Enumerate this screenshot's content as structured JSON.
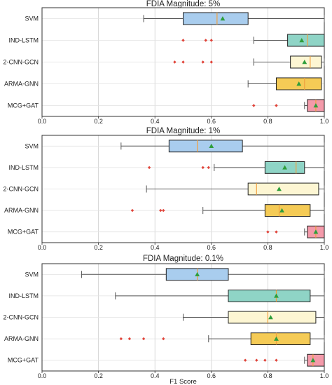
{
  "figure": {
    "xlabel": "F1 Score"
  },
  "colors": {
    "SVM": "#a9cdee",
    "IND-LSTM": "#8fd4c6",
    "2-CNN-GCN": "#fdf6d3",
    "ARMA-GNN": "#f5cb56",
    "MCG+GAT": "#f49aaa",
    "median": "#f0a040",
    "mean_marker": "#2e9e3b",
    "outlier": "#e0443a"
  },
  "chart_data": [
    {
      "type": "box",
      "title": "FDIA Magnitude: 5%",
      "xlabel": "",
      "xlim": [
        0.0,
        1.0
      ],
      "xticks": [
        "0.0",
        "0.2",
        "0.4",
        "0.6",
        "0.8",
        "1.0"
      ],
      "grid": true,
      "series": [
        {
          "name": "SVM",
          "whisker_low": 0.36,
          "q1": 0.5,
          "median": 0.62,
          "q3": 0.73,
          "whisker_high": 1.0,
          "mean": 0.64,
          "outliers": []
        },
        {
          "name": "IND-LSTM",
          "whisker_low": 0.75,
          "q1": 0.87,
          "median": 0.94,
          "q3": 1.0,
          "whisker_high": 1.0,
          "mean": 0.92,
          "outliers": [
            0.5,
            0.58,
            0.6
          ]
        },
        {
          "name": "2-CNN-GCN",
          "whisker_low": 0.75,
          "q1": 0.88,
          "median": 0.95,
          "q3": 0.99,
          "whisker_high": 1.0,
          "mean": 0.93,
          "outliers": [
            0.47,
            0.5,
            0.57,
            0.6
          ]
        },
        {
          "name": "ARMA-GNN",
          "whisker_low": 0.73,
          "q1": 0.83,
          "median": 0.93,
          "q3": 0.99,
          "whisker_high": 0.99,
          "mean": 0.91,
          "outliers": []
        },
        {
          "name": "MCG+GAT",
          "whisker_low": 0.93,
          "q1": 0.94,
          "median": 0.97,
          "q3": 1.0,
          "whisker_high": 1.0,
          "mean": 0.97,
          "outliers": [
            0.75,
            0.83
          ]
        }
      ]
    },
    {
      "type": "box",
      "title": "FDIA Magnitude: 1%",
      "xlabel": "",
      "xlim": [
        0.0,
        1.0
      ],
      "xticks": [
        "0.0",
        "0.2",
        "0.4",
        "0.6",
        "0.8",
        "1.0"
      ],
      "grid": true,
      "series": [
        {
          "name": "SVM",
          "whisker_low": 0.28,
          "q1": 0.45,
          "median": 0.55,
          "q3": 0.71,
          "whisker_high": 1.0,
          "mean": 0.6,
          "outliers": []
        },
        {
          "name": "IND-LSTM",
          "whisker_low": 0.61,
          "q1": 0.79,
          "median": 0.9,
          "q3": 0.93,
          "whisker_high": 1.0,
          "mean": 0.86,
          "outliers": [
            0.38,
            0.57,
            0.59
          ]
        },
        {
          "name": "2-CNN-GCN",
          "whisker_low": 0.37,
          "q1": 0.73,
          "median": 0.76,
          "q3": 0.98,
          "whisker_high": 1.0,
          "mean": 0.84,
          "outliers": []
        },
        {
          "name": "ARMA-GNN",
          "whisker_low": 0.57,
          "q1": 0.79,
          "median": 0.84,
          "q3": 0.95,
          "whisker_high": 1.0,
          "mean": 0.85,
          "outliers": [
            0.32,
            0.42,
            0.43
          ]
        },
        {
          "name": "MCG+GAT",
          "whisker_low": 0.93,
          "q1": 0.94,
          "median": 0.97,
          "q3": 1.0,
          "whisker_high": 1.0,
          "mean": 0.97,
          "outliers": [
            0.8,
            0.83
          ]
        }
      ]
    },
    {
      "type": "box",
      "title": "FDIA Magnitude: 0.1%",
      "xlabel": "F1 Score",
      "xlim": [
        0.0,
        1.0
      ],
      "xticks": [
        "0.0",
        "0.2",
        "0.4",
        "0.6",
        "0.8",
        "1.0"
      ],
      "grid": true,
      "series": [
        {
          "name": "SVM",
          "whisker_low": 0.14,
          "q1": 0.44,
          "median": 0.55,
          "q3": 0.66,
          "whisker_high": 1.0,
          "mean": 0.55,
          "outliers": []
        },
        {
          "name": "IND-LSTM",
          "whisker_low": 0.26,
          "q1": 0.66,
          "median": 0.83,
          "q3": 0.95,
          "whisker_high": 1.0,
          "mean": 0.83,
          "outliers": []
        },
        {
          "name": "2-CNN-GCN",
          "whisker_low": 0.5,
          "q1": 0.66,
          "median": 0.8,
          "q3": 0.97,
          "whisker_high": 1.0,
          "mean": 0.81,
          "outliers": []
        },
        {
          "name": "ARMA-GNN",
          "whisker_low": 0.59,
          "q1": 0.74,
          "median": 0.83,
          "q3": 0.95,
          "whisker_high": 1.0,
          "mean": 0.83,
          "outliers": [
            0.28,
            0.31,
            0.36,
            0.43
          ]
        },
        {
          "name": "MCG+GAT",
          "whisker_low": 0.93,
          "q1": 0.94,
          "median": 0.96,
          "q3": 1.0,
          "whisker_high": 1.0,
          "mean": 0.96,
          "outliers": [
            0.72,
            0.76,
            0.79,
            0.83
          ]
        }
      ]
    }
  ]
}
